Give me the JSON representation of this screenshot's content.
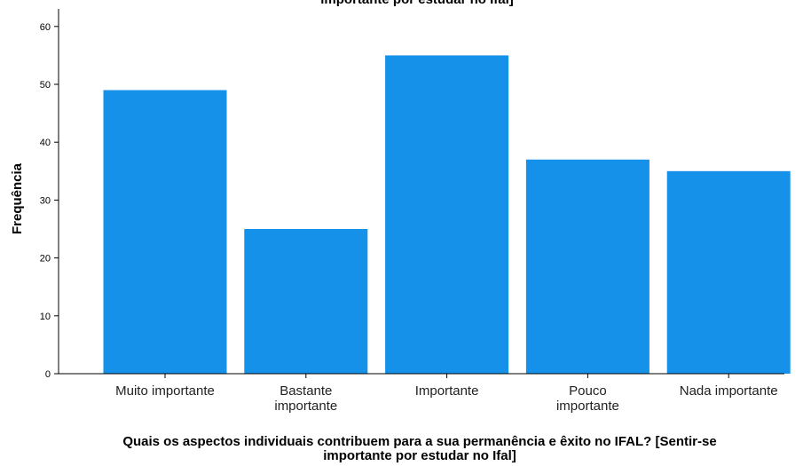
{
  "chart_data": {
    "type": "bar",
    "title_clipped": "importante por estudar no Ifal]",
    "categories": [
      "Muito importante",
      "Bastante importante",
      "Importante",
      "Pouco importante",
      "Nada importante"
    ],
    "category_lines": [
      [
        "Muito importante"
      ],
      [
        "Bastante",
        "importante"
      ],
      [
        "Importante"
      ],
      [
        "Pouco",
        "importante"
      ],
      [
        "Nada importante"
      ]
    ],
    "values": [
      49,
      25,
      55,
      37,
      35
    ],
    "xlabel_lines": [
      "Quais os aspectos individuais contribuem para a sua permanência e êxito no IFAL? [Sentir-se",
      "importante por estudar no Ifal]"
    ],
    "ylabel": "Frequência",
    "ylim": [
      0,
      62
    ],
    "yticks": [
      0,
      10,
      20,
      30,
      40,
      50,
      60
    ],
    "bar_color": "#1591ea",
    "grid": false
  }
}
